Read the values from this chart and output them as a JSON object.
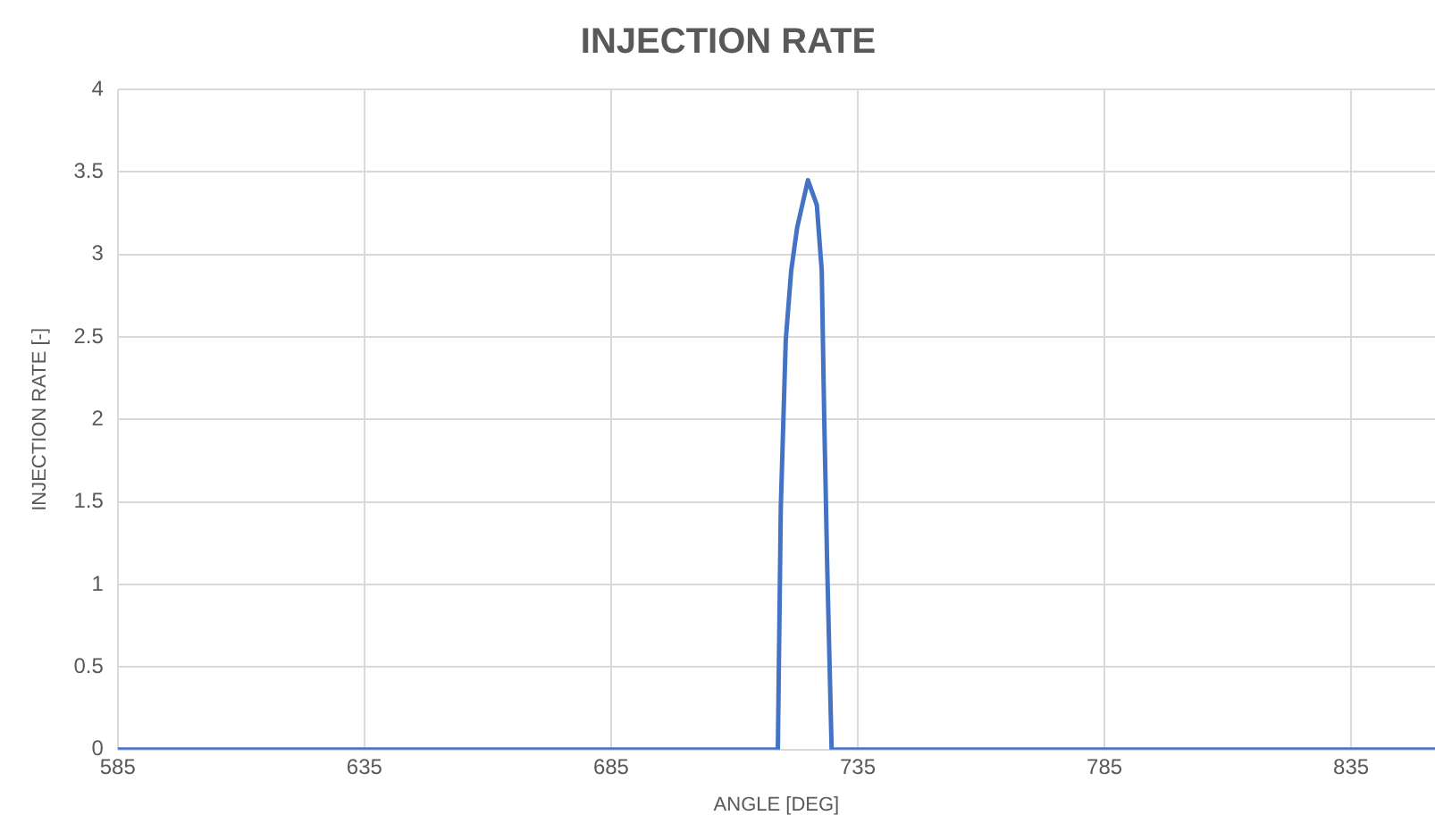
{
  "chart_data": {
    "type": "line",
    "title": "INJECTION RATE",
    "xlabel": "ANGLE [DEG]",
    "ylabel": "INJECTION RATE [-]",
    "series": [
      {
        "color": "#4472c4",
        "x": [
          585,
          718.8,
          719.4,
          720.4,
          721.5,
          722.7,
          723.6,
          724.9,
          726.7,
          727.7,
          728.2,
          728.8,
          729.7,
          852
        ],
        "values": [
          0,
          0,
          1.47,
          2.48,
          2.9,
          3.16,
          3.28,
          3.45,
          3.3,
          2.9,
          2.01,
          1.12,
          0,
          0
        ]
      }
    ],
    "xlim": [
      585,
      852
    ],
    "xticks": [
      585,
      635,
      685,
      735,
      785,
      835
    ],
    "ylim": [
      0,
      4
    ],
    "yticks": [
      0,
      0.5,
      1,
      1.5,
      2,
      2.5,
      3,
      3.5,
      4
    ],
    "grid": true,
    "legend": false,
    "marker": "none",
    "line_style": "solid"
  }
}
